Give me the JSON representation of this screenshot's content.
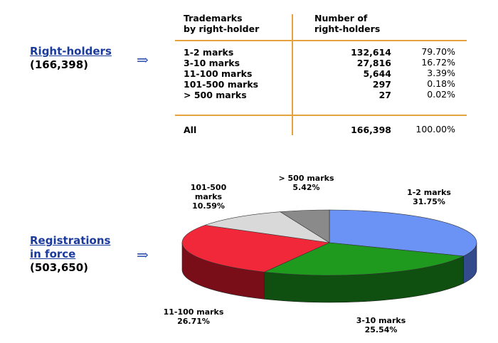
{
  "left": {
    "right_holders": {
      "title": "Right-holders",
      "count": "(166,398)"
    },
    "registrations": {
      "title_line1": "Registrations",
      "title_line2": "in force",
      "count": "(503,650)"
    },
    "arrow": "⇒"
  },
  "table": {
    "col1_header_line1": "Trademarks",
    "col1_header_line2": "by right-holder",
    "col2_header_line1": "Number of",
    "col2_header_line2": "right-holders",
    "rows": [
      {
        "label": "1-2 marks",
        "value": "132,614",
        "pct": "79.70%"
      },
      {
        "label": "3-10 marks",
        "value": "27,816",
        "pct": "16.72%"
      },
      {
        "label": "11-100 marks",
        "value": "5,644",
        "pct": "3.39%"
      },
      {
        "label": "101-500 marks",
        "value": "297",
        "pct": "0.18%"
      },
      {
        "label": "> 500 marks",
        "value": "27",
        "pct": "0.02%"
      }
    ],
    "total": {
      "label": "All",
      "value": "166,398",
      "pct": "100.00%"
    }
  },
  "colors": {
    "accent_line": "#e6a23c",
    "link_blue": "#1a3a9c"
  },
  "chart_data": {
    "type": "pie",
    "series": [
      {
        "slices": [
          {
            "label": "1-2 marks",
            "pct_label": "31.75%",
            "value": 31.75,
            "color": "#6b93f5",
            "side": "#334a8c"
          },
          {
            "label": "3-10 marks",
            "pct_label": "25.54%",
            "value": 25.54,
            "color": "#1f9a1f",
            "side": "#0f4f0f"
          },
          {
            "label": "11-100 marks",
            "pct_label": "26.71%",
            "value": 26.71,
            "color": "#f0283a",
            "side": "#7a0e18"
          },
          {
            "label": "101-500 marks",
            "pct_label": "10.59%",
            "value": 10.59,
            "color": "#d9d9d9",
            "side": "#8a8a8a"
          },
          {
            "label": "> 500 marks",
            "pct_label": "5.42%",
            "value": 5.42,
            "color": "#8a8a8a",
            "side": "#4a4a4a"
          }
        ]
      }
    ]
  }
}
